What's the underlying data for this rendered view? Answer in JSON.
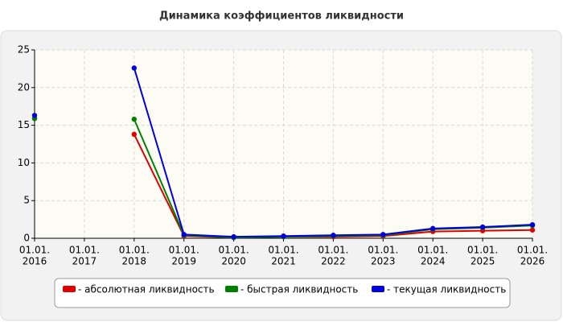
{
  "chart_data": {
    "type": "line",
    "title": "Динамика коэффициентов ликвидности",
    "categories": [
      [
        "01.01.",
        "2016"
      ],
      [
        "01.01.",
        "2017"
      ],
      [
        "01.01.",
        "2018"
      ],
      [
        "01.01.",
        "2019"
      ],
      [
        "01.01.",
        "2020"
      ],
      [
        "01.01.",
        "2021"
      ],
      [
        "01.01.",
        "2022"
      ],
      [
        "01.01.",
        "2023"
      ],
      [
        "01.01.",
        "2024"
      ],
      [
        "01.01.",
        "2025"
      ],
      [
        "01.01.",
        "2026"
      ]
    ],
    "series": [
      {
        "name": "- абсолютная ликвидность",
        "color": "#e00000",
        "values": [
          15.9,
          null,
          13.8,
          0.3,
          0.1,
          0.2,
          0.2,
          0.3,
          0.9,
          1.0,
          1.1
        ]
      },
      {
        "name": "- быстрая ликвидность",
        "color": "#008000",
        "values": [
          15.9,
          null,
          15.8,
          0.4,
          0.1,
          0.2,
          0.3,
          0.4,
          1.2,
          1.4,
          1.7
        ]
      },
      {
        "name": "- текущая ликвидность",
        "color": "#0000e0",
        "values": [
          16.3,
          null,
          22.6,
          0.5,
          0.2,
          0.3,
          0.4,
          0.5,
          1.3,
          1.5,
          1.8
        ]
      }
    ],
    "ylim": [
      0,
      25
    ],
    "yticks": [
      0,
      5,
      10,
      15,
      20,
      25
    ],
    "grid": true
  }
}
